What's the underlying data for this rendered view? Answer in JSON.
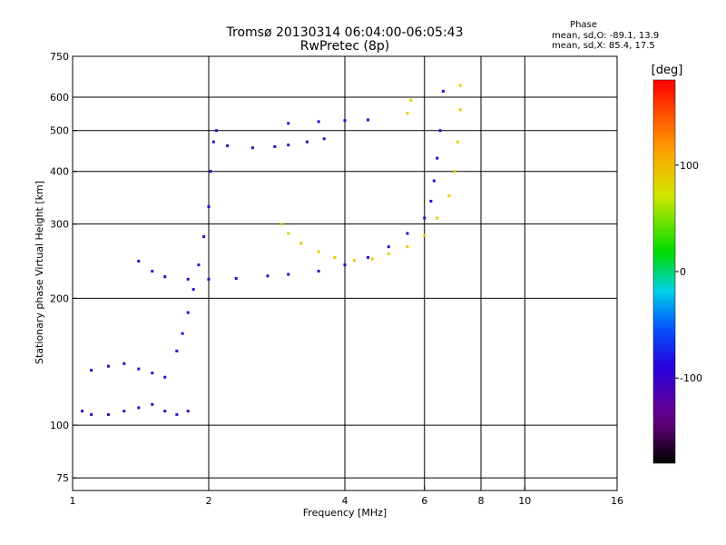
{
  "chart_data": {
    "type": "scatter",
    "title": "Tromsø 20130314 06:04:00-06:05:43",
    "subtitle": "RwPretec (8p)",
    "xlabel": "Frequency [MHz]",
    "ylabel": "Stationary phase Virtual Height [km]",
    "x_scale": "log",
    "y_scale": "log",
    "xlim": [
      1,
      16
    ],
    "ylim": [
      70,
      750
    ],
    "x_ticks": [
      1,
      2,
      4,
      6,
      8,
      10,
      16
    ],
    "x_tick_labels": [
      "1",
      "2",
      "4",
      "6",
      "8",
      "10",
      "16"
    ],
    "y_ticks": [
      75,
      100,
      200,
      300,
      400,
      500,
      600,
      750
    ],
    "y_tick_labels": [
      "75",
      "100",
      "200",
      "300",
      "400",
      "500",
      "600",
      "750"
    ],
    "grid": true,
    "stats": {
      "title": "Phase",
      "line_o": "mean, sd,O: -89.1, 13.9",
      "line_x": "mean, sd,X:  85.4, 17.5"
    },
    "colorbar": {
      "label": "[deg]",
      "range": [
        -180,
        180
      ],
      "ticks": [
        100,
        0,
        -100
      ],
      "tick_labels": [
        "100",
        "0",
        "-100"
      ],
      "colormap": "rainbow"
    },
    "series": [
      {
        "mode": "O",
        "phase": -100,
        "points": [
          [
            1.05,
            108
          ],
          [
            1.1,
            106
          ],
          [
            1.2,
            106
          ],
          [
            1.3,
            108
          ],
          [
            1.4,
            110
          ],
          [
            1.5,
            112
          ],
          [
            1.6,
            108
          ],
          [
            1.7,
            106
          ],
          [
            1.8,
            108
          ],
          [
            1.1,
            135
          ],
          [
            1.2,
            138
          ],
          [
            1.3,
            140
          ],
          [
            1.4,
            136
          ],
          [
            1.5,
            133
          ],
          [
            1.6,
            130
          ],
          [
            1.7,
            150
          ],
          [
            1.75,
            165
          ],
          [
            1.8,
            185
          ],
          [
            1.85,
            210
          ],
          [
            1.9,
            240
          ],
          [
            1.95,
            280
          ],
          [
            2.0,
            330
          ],
          [
            2.02,
            400
          ],
          [
            2.05,
            470
          ],
          [
            2.08,
            500
          ],
          [
            1.4,
            245
          ],
          [
            1.5,
            232
          ],
          [
            1.6,
            225
          ],
          [
            1.8,
            222
          ],
          [
            2.0,
            222
          ],
          [
            2.3,
            223
          ],
          [
            2.7,
            226
          ],
          [
            3.0,
            228
          ],
          [
            3.5,
            232
          ],
          [
            4.0,
            240
          ],
          [
            4.5,
            250
          ],
          [
            5.0,
            265
          ],
          [
            5.5,
            285
          ],
          [
            6.0,
            310
          ],
          [
            6.2,
            340
          ],
          [
            6.3,
            380
          ],
          [
            6.4,
            430
          ],
          [
            6.5,
            500
          ],
          [
            6.6,
            620
          ],
          [
            2.2,
            460
          ],
          [
            2.5,
            455
          ],
          [
            2.8,
            458
          ],
          [
            3.0,
            462
          ],
          [
            3.3,
            470
          ],
          [
            3.6,
            478
          ],
          [
            3.0,
            520
          ],
          [
            3.5,
            525
          ],
          [
            4.0,
            528
          ],
          [
            4.5,
            530
          ]
        ]
      },
      {
        "mode": "X",
        "phase": 85,
        "points": [
          [
            2.9,
            300
          ],
          [
            3.0,
            285
          ],
          [
            3.2,
            270
          ],
          [
            3.5,
            258
          ],
          [
            3.8,
            250
          ],
          [
            4.2,
            246
          ],
          [
            4.6,
            248
          ],
          [
            5.0,
            255
          ],
          [
            5.5,
            265
          ],
          [
            6.0,
            282
          ],
          [
            6.4,
            310
          ],
          [
            6.8,
            350
          ],
          [
            7.0,
            400
          ],
          [
            7.1,
            470
          ],
          [
            7.2,
            560
          ],
          [
            7.2,
            640
          ],
          [
            5.5,
            550
          ],
          [
            5.6,
            590
          ]
        ]
      }
    ]
  }
}
